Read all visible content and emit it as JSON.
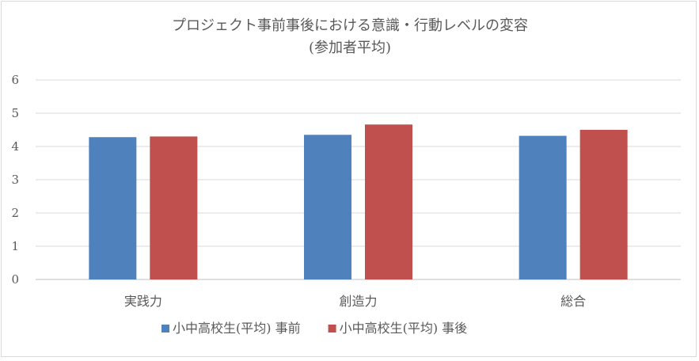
{
  "chart_data": {
    "type": "bar",
    "title": "プロジェクト事前事後における意識・行動レベルの変容",
    "subtitle": "(参加者平均)",
    "categories": [
      "実践力",
      "創造力",
      "総合"
    ],
    "series": [
      {
        "name": "小中高校生(平均) 事前",
        "color": "#4f81bd",
        "values": [
          4.28,
          4.35,
          4.32
        ]
      },
      {
        "name": "小中高校生(平均) 事後",
        "color": "#c0504d",
        "values": [
          4.3,
          4.66,
          4.5
        ]
      }
    ],
    "ylim": [
      0,
      6
    ],
    "yticks": [
      "0",
      "1",
      "2",
      "3",
      "4",
      "5",
      "6"
    ],
    "xlabel": "",
    "ylabel": "",
    "grid": true,
    "legend_position": "bottom"
  }
}
